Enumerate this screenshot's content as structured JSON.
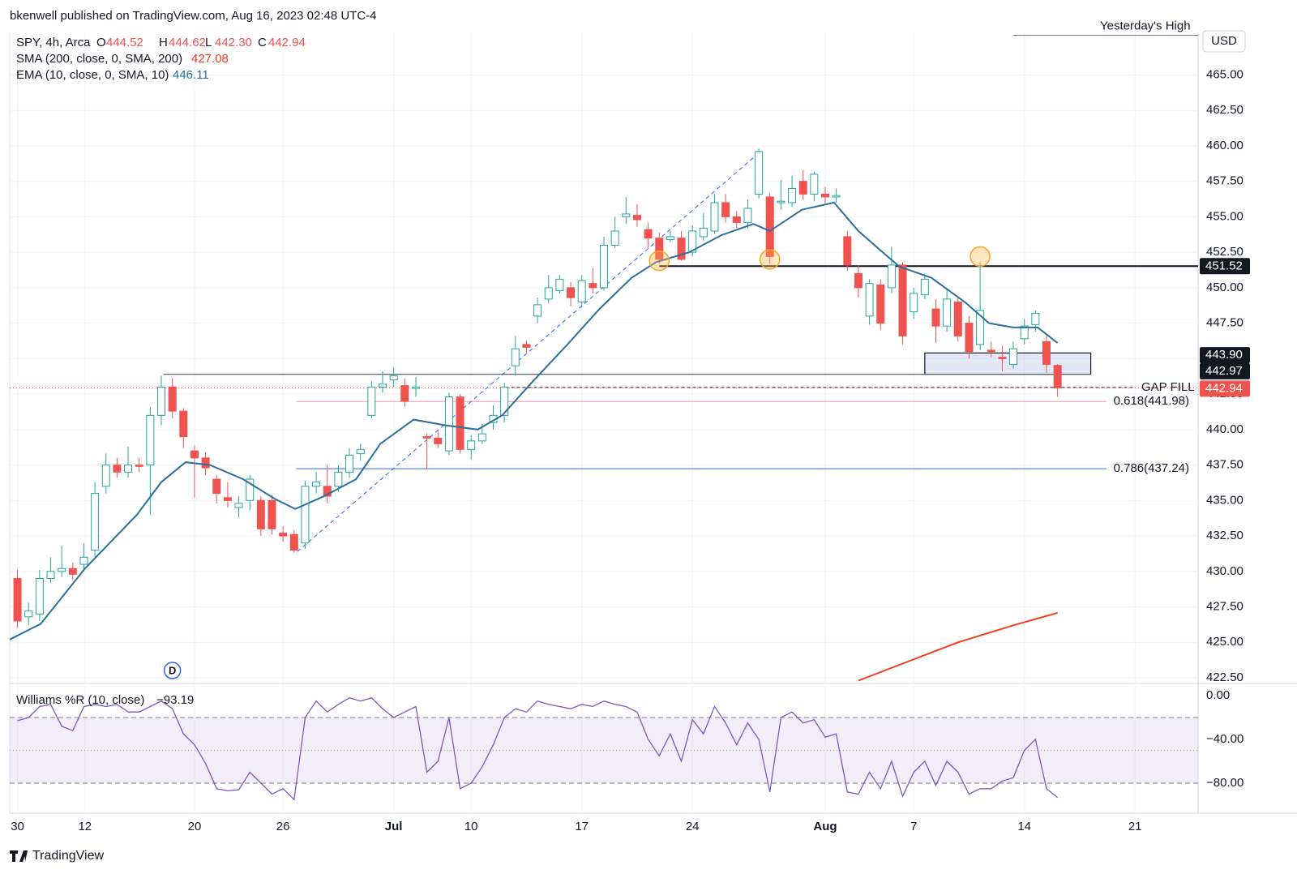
{
  "top_bar": "bkenwell published on TradingView.com, Aug 16, 2023 02:48 UTC-4",
  "brand": "TradingView",
  "chart_data": {
    "type": "candlestick",
    "symbol": "SPY, 4h, Arca",
    "ohlc_legend": [
      {
        "key": "O",
        "label": "444.52"
      },
      {
        "key": "H",
        "label": "444.62"
      },
      {
        "key": "L",
        "label": "442.30"
      },
      {
        "key": "C",
        "label": "442.94"
      }
    ],
    "currency": "USD",
    "open": [
      429.5,
      426.8,
      427,
      429.5,
      430,
      430.2,
      430.5,
      431.5,
      436,
      437.5,
      437,
      437.5,
      437.5,
      441,
      443,
      441.3,
      438.5,
      438,
      436.5,
      435.2,
      434.5,
      435,
      435,
      435,
      432.7,
      432.6,
      432,
      436,
      436,
      436,
      437,
      438.3,
      441,
      443,
      443.5,
      443.1,
      442.9,
      439.5,
      439.4,
      438.5,
      442.3,
      438.6,
      439.2,
      440.5,
      441,
      444.5,
      446,
      448,
      449.2,
      449.8,
      450,
      449,
      450.3,
      450,
      453,
      455,
      455.1,
      454.1,
      453.5,
      453.4,
      453.5,
      452.5,
      453.6,
      454,
      456,
      455,
      454.6,
      456.6,
      456.4,
      456,
      456,
      457.5,
      456.6,
      456.6,
      456.4,
      453.6,
      451,
      448,
      450.2,
      450,
      451.6,
      448.3,
      449.5,
      448.5,
      447.3,
      449,
      447.5,
      446,
      445.6,
      445.1,
      444.6,
      446.4,
      447.4,
      446.2,
      444.52
    ],
    "high": [
      430.1,
      427.8,
      430.1,
      431.0,
      431.8,
      430.6,
      432.0,
      436.3,
      438.3,
      438.0,
      438.8,
      438.0,
      441.6,
      443.8,
      443.6,
      441.5,
      438.9,
      438.4,
      436.8,
      436.3,
      435.3,
      436.8,
      435.3,
      435.4,
      433.2,
      432.9,
      436.4,
      437.0,
      437.5,
      437.5,
      438.7,
      439.0,
      443.4,
      444.1,
      444.4,
      443.6,
      443.7,
      439.7,
      440.0,
      442.6,
      442.5,
      439.6,
      440.4,
      441.7,
      443.3,
      446.6,
      446.3,
      449.3,
      450.9,
      450.9,
      450.4,
      450.9,
      451.4,
      453.6,
      455.0,
      456.4,
      455.9,
      454.6,
      453.9,
      454.0,
      454.0,
      454.4,
      455.3,
      456.6,
      456.6,
      455.4,
      456.2,
      459.8,
      456.7,
      457.6,
      457.9,
      458.3,
      458.2,
      457.1,
      457.0,
      454.0,
      451.6,
      450.6,
      450.6,
      452.9,
      451.8,
      450.0,
      451.0,
      449.2,
      449.9,
      449.4,
      448.0,
      451.8,
      446.2,
      445.9,
      446.2,
      447.8,
      448.4,
      446.6,
      444.62
    ],
    "low": [
      426.0,
      426.2,
      426.5,
      429.2,
      429.6,
      429.4,
      430.0,
      431.0,
      435.5,
      436.6,
      436.6,
      437.0,
      434.0,
      440.3,
      440.8,
      438.7,
      435.2,
      436.8,
      434.8,
      434.5,
      433.8,
      434.3,
      432.5,
      432.6,
      432.1,
      431.3,
      431.6,
      435.5,
      434.8,
      435.6,
      436.6,
      437.8,
      440.8,
      442.6,
      443.0,
      441.6,
      442.3,
      437.2,
      438.7,
      438.2,
      438.3,
      437.9,
      439.0,
      440.0,
      440.5,
      443.8,
      445.4,
      447.5,
      448.9,
      449.6,
      448.7,
      448.6,
      449.6,
      449.8,
      452.8,
      454.5,
      454.3,
      452.8,
      451.7,
      453.2,
      451.9,
      452.2,
      453.3,
      453.8,
      454.6,
      454.2,
      454.2,
      456.3,
      451.7,
      455.5,
      455.7,
      456.2,
      456.1,
      455.9,
      456.0,
      451.2,
      449.3,
      447.4,
      447.0,
      449.6,
      446.0,
      447.8,
      449.2,
      446.1,
      446.9,
      446.2,
      445.0,
      445.6,
      445.1,
      444.1,
      444.3,
      446.0,
      446.9,
      444.0,
      442.3
    ],
    "close": [
      426.5,
      427.2,
      429.5,
      430,
      430.2,
      429.8,
      431,
      435.5,
      437.5,
      437,
      437.5,
      437.4,
      441,
      443,
      441.3,
      439.5,
      438,
      437.3,
      435.5,
      435,
      434.8,
      436.5,
      433,
      433,
      432.5,
      431.5,
      436,
      436.3,
      435.3,
      437,
      438.2,
      438.6,
      443,
      443.2,
      443.8,
      442,
      443,
      439.4,
      439,
      442.3,
      438.6,
      439.2,
      439.7,
      441,
      443,
      445.7,
      445.8,
      448.8,
      450,
      450.6,
      449.3,
      450.5,
      450,
      453,
      454,
      455.2,
      454.8,
      453.5,
      452,
      453.6,
      452,
      454,
      454.2,
      456,
      455,
      454.6,
      455.6,
      459.6,
      452.2,
      456.1,
      457,
      456.6,
      458,
      456.4,
      456.5,
      451.6,
      450,
      450.3,
      447.5,
      451.6,
      446.6,
      449.6,
      450.6,
      447.3,
      449.2,
      446.6,
      445.5,
      448.4,
      445.5,
      445,
      445.7,
      447.3,
      448.2,
      444.6,
      442.94
    ],
    "up_color": "#26a69a",
    "down_color": "#ef5350",
    "xlim": [
      -0.7,
      106.7
    ],
    "xticks": [
      {
        "value": 0,
        "label": "30"
      },
      {
        "value": 6.1,
        "label": "12"
      },
      {
        "value": 16,
        "label": "20"
      },
      {
        "value": 24,
        "label": "26"
      },
      {
        "value": 34,
        "label": "Jul"
      },
      {
        "value": 41,
        "label": "10"
      },
      {
        "value": 51,
        "label": "17"
      },
      {
        "value": 61,
        "label": "24"
      },
      {
        "value": 73,
        "label": "Aug"
      },
      {
        "value": 81,
        "label": "7"
      },
      {
        "value": 91,
        "label": "14"
      },
      {
        "value": 101,
        "label": "21"
      }
    ],
    "ylim": [
      422.1,
      468
    ],
    "yticks": [
      {
        "value": 422.5,
        "label": "422.50"
      },
      {
        "value": 425,
        "label": "425.00"
      },
      {
        "value": 427.5,
        "label": "427.50"
      },
      {
        "value": 430,
        "label": "430.00"
      },
      {
        "value": 432.5,
        "label": "432.50"
      },
      {
        "value": 435,
        "label": "435.00"
      },
      {
        "value": 437.5,
        "label": "437.50"
      },
      {
        "value": 440,
        "label": "440.00"
      },
      {
        "value": 442.5,
        "label": "442.50"
      },
      {
        "value": 445,
        "label": "445.00"
      },
      {
        "value": 447.5,
        "label": "447.50"
      },
      {
        "value": 450,
        "label": "450.00"
      },
      {
        "value": 452.5,
        "label": "452.50"
      },
      {
        "value": 455,
        "label": "455.00"
      },
      {
        "value": 457.5,
        "label": "457.50"
      },
      {
        "value": 460,
        "label": "460.00"
      },
      {
        "value": 462.5,
        "label": "462.50"
      },
      {
        "value": 465,
        "label": "465.00"
      }
    ],
    "grid": true,
    "ema": {
      "name": "EMA (10, close, 0, SMA, 10)",
      "color": "#2a6f9e",
      "x": [
        -0.7,
        2.1,
        6.1,
        10.8,
        13,
        15.2,
        17.4,
        20.4,
        23.3,
        25.1,
        27.7,
        30.6,
        32.8,
        35.8,
        38.7,
        41.6,
        43.8,
        46.7,
        49.7,
        52.6,
        55.5,
        57.7,
        60.7,
        63.6,
        66.5,
        68,
        70.9,
        73.8,
        76,
        78.2,
        79.7,
        82.6,
        85.6,
        87.8,
        90,
        92.2,
        94
      ],
      "values": [
        425.2,
        426.3,
        430.2,
        434,
        436.3,
        437.7,
        437.5,
        436.5,
        435.1,
        434.4,
        435.3,
        436.5,
        439,
        440.7,
        440.3,
        440,
        441,
        443.5,
        446,
        448.5,
        450.7,
        451.8,
        452.5,
        453.7,
        454.5,
        454,
        455.5,
        456,
        454,
        452.5,
        451.5,
        450.7,
        449,
        447.5,
        447.2,
        447.2,
        446.11
      ]
    },
    "sma": {
      "name": "SMA (200, close, 0, SMA, 200)",
      "color": "#f23c1d",
      "x": [
        76,
        80,
        85,
        90,
        94
      ],
      "values": [
        422.3,
        423.5,
        425.0,
        426.2,
        427.08
      ]
    },
    "resistance": 451.52,
    "box_low": {
      "value": 443.9,
      "label": "443.90"
    },
    "box_high": 445.4,
    "gap_fill": {
      "label": "GAP FILL",
      "value": 442.97
    },
    "fib": [
      {
        "label": "0.618(441.98)",
        "value": 441.98,
        "color": "#f48fb1"
      },
      {
        "label": "0.786(437.24)",
        "value": 437.24,
        "color": "#2962ff"
      }
    ],
    "yesterday_high": {
      "label": "Yesterday's High",
      "value": 467.8
    },
    "markers": [
      {
        "x": 58,
        "value": 451.9
      },
      {
        "x": 68,
        "value": 452
      },
      {
        "x": 87,
        "value": 452.2
      }
    ],
    "trendline": {
      "x": [
        25.3,
        67
      ],
      "values": [
        431.4,
        459.5
      ]
    },
    "dividend": {
      "label": "D",
      "x": 14
    },
    "williams": {
      "name": "Williams %R (10, close)",
      "value_label": "−93.19",
      "color": "#7e57c2",
      "values": [
        -23,
        -20,
        -10,
        -8,
        -28,
        -32,
        -10,
        -8,
        -10,
        -8,
        -15,
        -15,
        -10,
        -5,
        -12,
        -35,
        -45,
        -62,
        -85,
        -87,
        -86,
        -70,
        -80,
        -90,
        -85,
        -95,
        -20,
        -5,
        -15,
        -8,
        -2,
        -5,
        -2,
        -12,
        -20,
        -15,
        -10,
        -70,
        -60,
        -20,
        -85,
        -80,
        -65,
        -45,
        -20,
        -12,
        -15,
        -5,
        -8,
        -10,
        -12,
        -8,
        -10,
        -5,
        -8,
        -10,
        -15,
        -40,
        -55,
        -35,
        -60,
        -22,
        -35,
        -10,
        -25,
        -45,
        -25,
        -40,
        -88,
        -20,
        -15,
        -25,
        -22,
        -38,
        -35,
        -88,
        -90,
        -70,
        -85,
        -60,
        -92,
        -70,
        -60,
        -82,
        -60,
        -70,
        -90,
        -85,
        -85,
        -78,
        -75,
        -50,
        -40,
        -85,
        -93.19
      ],
      "ylim": [
        -107.4,
        9.6
      ],
      "yticks": [
        {
          "value": 0,
          "label": "0.00"
        },
        {
          "value": -40,
          "label": "−40.00"
        },
        {
          "value": -80,
          "label": "−80.00"
        }
      ],
      "bands": [
        -20,
        -80
      ],
      "mid": -50
    }
  }
}
